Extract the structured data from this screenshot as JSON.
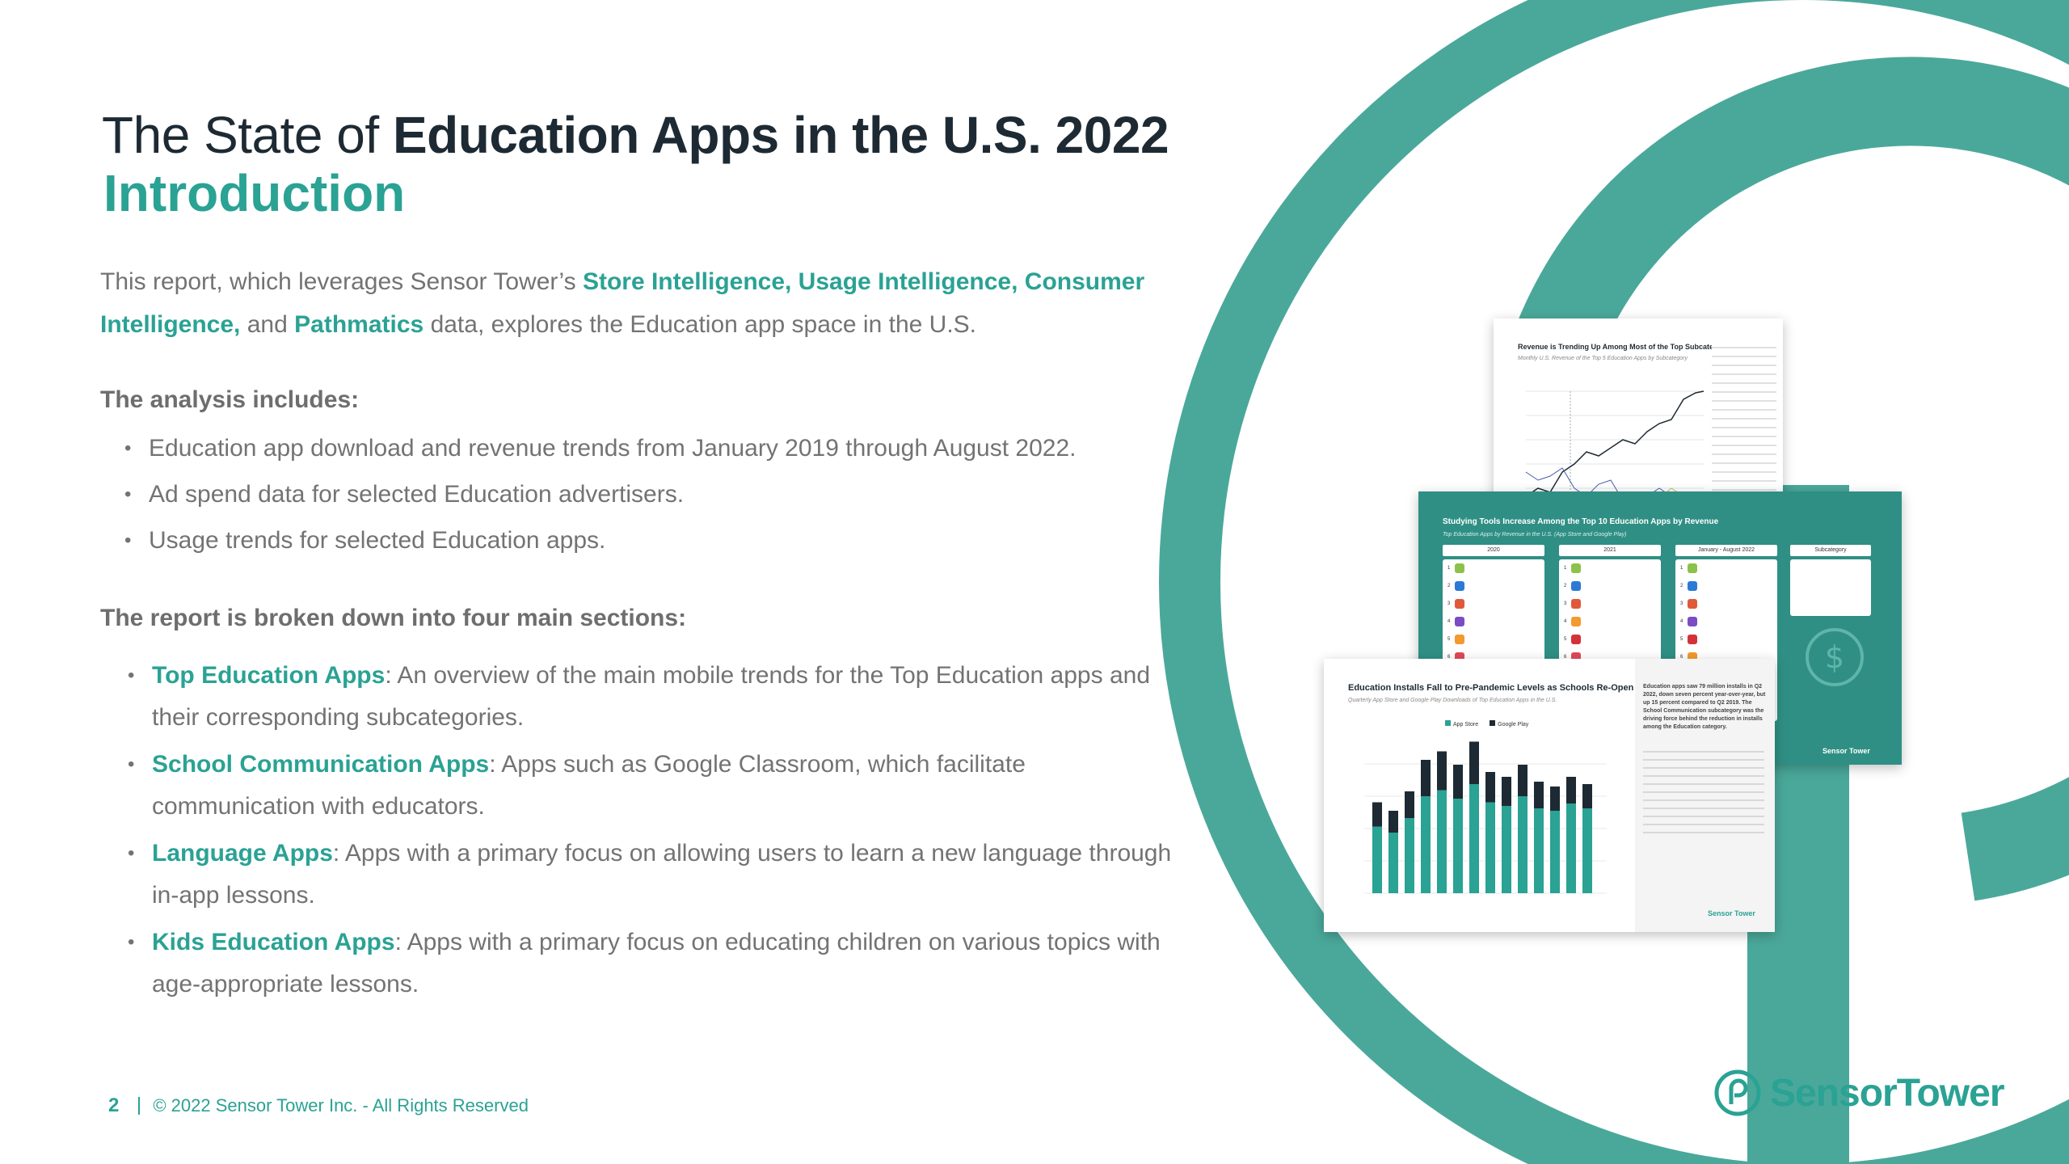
{
  "title": {
    "prefix": "The State of",
    "emphasis": "Education Apps in the U.S. 2022",
    "subtitle": "Introduction"
  },
  "intro": {
    "part1": "This report, which leverages Sensor Tower’s",
    "link1": "Store Intelligence, Usage Intelligence, Consumer Intelligence,",
    "part2": "and",
    "link2": "Pathmatics",
    "part3": "data, explores the Education app space in the U.S."
  },
  "analysis": {
    "heading": "The analysis includes:",
    "items": [
      "Education app download and revenue trends from January 2019 through August 2022.",
      "Ad spend data for selected Education advertisers.",
      "Usage trends for selected Education apps."
    ]
  },
  "sections": {
    "heading": "The report is broken down into four main sections:",
    "items": [
      {
        "name": "Top Education Apps",
        "desc": ":  An overview of the main mobile trends for the Top Education apps and their corresponding subcategories."
      },
      {
        "name": "School Communication Apps",
        "desc": ": Apps such as Google Classroom, which facilitate communication with educators."
      },
      {
        "name": "Language Apps",
        "desc": ": Apps with a primary focus on allowing users to learn a new language through in-app lessons."
      },
      {
        "name": "Kids Education Apps",
        "desc": ": Apps with a primary focus on educating children on various topics with age-appropriate lessons."
      }
    ]
  },
  "footer": {
    "page": "2",
    "copyright": "© 2022 Sensor Tower Inc. - All Rights Reserved"
  },
  "logo": {
    "text": "SensorTower",
    "icon": "sensortower-logo-icon"
  },
  "thumbnails": {
    "revenue": {
      "title": "Revenue is Trending Up Among Most of the Top Subcategories",
      "subtitle": "Monthly U.S. Revenue of the Top 5 Education Apps by Subcategory"
    },
    "studying": {
      "title": "Studying Tools Increase Among the Top 10 Education Apps by Revenue",
      "subtitle": "Top Education Apps by Revenue in the U.S. (App Store and Google Play)",
      "columns": [
        "2020",
        "2021",
        "January - August 2022",
        "Subcategory"
      ],
      "logo": "Sensor Tower"
    },
    "installs": {
      "title": "Education Installs Fall to Pre-Pandemic Levels as Schools Re-Open",
      "subtitle": "Quarterly App Store and Google Play Downloads of Top Education Apps in the U.S.",
      "legend": [
        "App Store",
        "Google Play"
      ],
      "side_text": "Education apps saw 79 million installs in Q2 2022, down seven percent year-over-year, but up 15 percent compared to Q2 2019. The School Communication subcategory was the driving force behind the reduction in installs among the Education category.",
      "logo": "Sensor Tower"
    }
  },
  "colors": {
    "accent": "#2aa294",
    "heading": "#1e2a33",
    "body": "#737373",
    "deco": "#4aa89a"
  }
}
